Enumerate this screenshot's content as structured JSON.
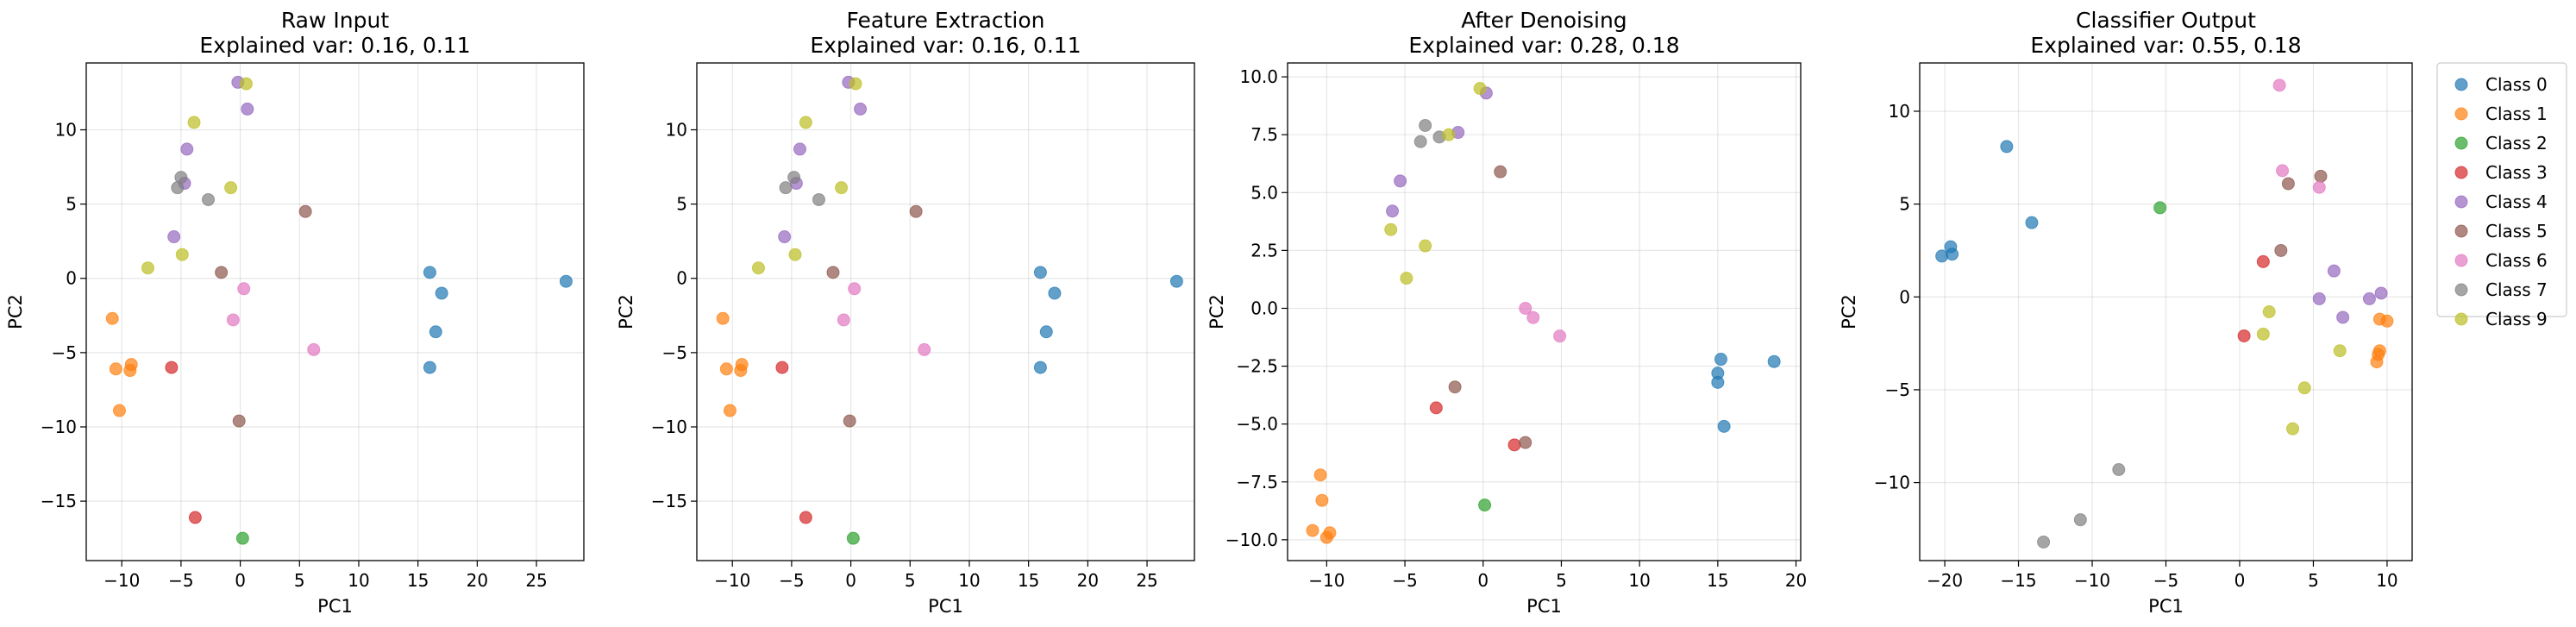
{
  "colors": {
    "Class 0": "#1f77b4",
    "Class 1": "#ff7f0e",
    "Class 2": "#2ca02c",
    "Class 3": "#d62728",
    "Class 4": "#9467bd",
    "Class 5": "#8c564b",
    "Class 6": "#e377c2",
    "Class 7": "#7f7f7f",
    "Class 9": "#bcbd22"
  },
  "legend": [
    "Class 0",
    "Class 1",
    "Class 2",
    "Class 3",
    "Class 4",
    "Class 5",
    "Class 6",
    "Class 7",
    "Class 9"
  ],
  "chart_data": [
    {
      "type": "scatter",
      "title": "Raw Input",
      "subtitle": "Explained var: 0.16, 0.11",
      "xlabel": "PC1",
      "ylabel": "PC2",
      "xlim": [
        -13,
        29
      ],
      "ylim": [
        -19,
        14.5
      ],
      "xticks": [
        -10,
        -5,
        0,
        5,
        10,
        15,
        20,
        25
      ],
      "yticks": [
        -15,
        -10,
        -5,
        0,
        5,
        10
      ],
      "grid": true,
      "points": [
        {
          "x": 16,
          "y": 0.4,
          "cls": "Class 0"
        },
        {
          "x": 17,
          "y": -1,
          "cls": "Class 0"
        },
        {
          "x": 16.5,
          "y": -3.6,
          "cls": "Class 0"
        },
        {
          "x": 16,
          "y": -6,
          "cls": "Class 0"
        },
        {
          "x": 27.5,
          "y": -0.2,
          "cls": "Class 0"
        },
        {
          "x": -10.8,
          "y": -2.7,
          "cls": "Class 1"
        },
        {
          "x": -10.5,
          "y": -6.1,
          "cls": "Class 1"
        },
        {
          "x": -9.3,
          "y": -6.2,
          "cls": "Class 1"
        },
        {
          "x": -9.2,
          "y": -5.8,
          "cls": "Class 1"
        },
        {
          "x": -10.2,
          "y": -8.9,
          "cls": "Class 1"
        },
        {
          "x": 0.2,
          "y": -17.5,
          "cls": "Class 2"
        },
        {
          "x": -5.8,
          "y": -6,
          "cls": "Class 3"
        },
        {
          "x": -3.8,
          "y": -16.1,
          "cls": "Class 3"
        },
        {
          "x": -0.2,
          "y": 13.2,
          "cls": "Class 4"
        },
        {
          "x": 0.6,
          "y": 11.4,
          "cls": "Class 4"
        },
        {
          "x": -4.5,
          "y": 8.7,
          "cls": "Class 4"
        },
        {
          "x": -4.7,
          "y": 6.4,
          "cls": "Class 4"
        },
        {
          "x": -5.6,
          "y": 2.8,
          "cls": "Class 4"
        },
        {
          "x": 5.5,
          "y": 4.5,
          "cls": "Class 5"
        },
        {
          "x": -1.6,
          "y": 0.4,
          "cls": "Class 5"
        },
        {
          "x": -0.1,
          "y": -9.6,
          "cls": "Class 5"
        },
        {
          "x": 0.3,
          "y": -0.7,
          "cls": "Class 6"
        },
        {
          "x": -0.6,
          "y": -2.8,
          "cls": "Class 6"
        },
        {
          "x": 6.2,
          "y": -4.8,
          "cls": "Class 6"
        },
        {
          "x": -5.3,
          "y": 6.1,
          "cls": "Class 7"
        },
        {
          "x": -5,
          "y": 6.8,
          "cls": "Class 7"
        },
        {
          "x": -2.7,
          "y": 5.3,
          "cls": "Class 7"
        },
        {
          "x": 0.5,
          "y": 13.1,
          "cls": "Class 9"
        },
        {
          "x": -3.9,
          "y": 10.5,
          "cls": "Class 9"
        },
        {
          "x": -0.8,
          "y": 6.1,
          "cls": "Class 9"
        },
        {
          "x": -7.8,
          "y": 0.7,
          "cls": "Class 9"
        },
        {
          "x": -4.9,
          "y": 1.6,
          "cls": "Class 9"
        }
      ]
    },
    {
      "type": "scatter",
      "title": "Feature Extraction",
      "subtitle": "Explained var: 0.16, 0.11",
      "xlabel": "PC1",
      "ylabel": "PC2",
      "xlim": [
        -13,
        29
      ],
      "ylim": [
        -19,
        14.5
      ],
      "xticks": [
        -10,
        -5,
        0,
        5,
        10,
        15,
        20,
        25
      ],
      "yticks": [
        -15,
        -10,
        -5,
        0,
        5,
        10
      ],
      "grid": true,
      "points": [
        {
          "x": 16,
          "y": 0.4,
          "cls": "Class 0"
        },
        {
          "x": 17.2,
          "y": -1,
          "cls": "Class 0"
        },
        {
          "x": 16.5,
          "y": -3.6,
          "cls": "Class 0"
        },
        {
          "x": 16,
          "y": -6,
          "cls": "Class 0"
        },
        {
          "x": 27.5,
          "y": -0.2,
          "cls": "Class 0"
        },
        {
          "x": -10.8,
          "y": -2.7,
          "cls": "Class 1"
        },
        {
          "x": -10.5,
          "y": -6.1,
          "cls": "Class 1"
        },
        {
          "x": -9.3,
          "y": -6.2,
          "cls": "Class 1"
        },
        {
          "x": -9.2,
          "y": -5.8,
          "cls": "Class 1"
        },
        {
          "x": -10.2,
          "y": -8.9,
          "cls": "Class 1"
        },
        {
          "x": 0.2,
          "y": -17.5,
          "cls": "Class 2"
        },
        {
          "x": -5.8,
          "y": -6,
          "cls": "Class 3"
        },
        {
          "x": -3.8,
          "y": -16.1,
          "cls": "Class 3"
        },
        {
          "x": -0.2,
          "y": 13.2,
          "cls": "Class 4"
        },
        {
          "x": 0.8,
          "y": 11.4,
          "cls": "Class 4"
        },
        {
          "x": -4.3,
          "y": 8.7,
          "cls": "Class 4"
        },
        {
          "x": -4.6,
          "y": 6.4,
          "cls": "Class 4"
        },
        {
          "x": -5.6,
          "y": 2.8,
          "cls": "Class 4"
        },
        {
          "x": 5.5,
          "y": 4.5,
          "cls": "Class 5"
        },
        {
          "x": -1.5,
          "y": 0.4,
          "cls": "Class 5"
        },
        {
          "x": -0.1,
          "y": -9.6,
          "cls": "Class 5"
        },
        {
          "x": 0.3,
          "y": -0.7,
          "cls": "Class 6"
        },
        {
          "x": -0.6,
          "y": -2.8,
          "cls": "Class 6"
        },
        {
          "x": 6.2,
          "y": -4.8,
          "cls": "Class 6"
        },
        {
          "x": -5.5,
          "y": 6.1,
          "cls": "Class 7"
        },
        {
          "x": -4.8,
          "y": 6.8,
          "cls": "Class 7"
        },
        {
          "x": -2.7,
          "y": 5.3,
          "cls": "Class 7"
        },
        {
          "x": 0.4,
          "y": 13.1,
          "cls": "Class 9"
        },
        {
          "x": -3.8,
          "y": 10.5,
          "cls": "Class 9"
        },
        {
          "x": -0.8,
          "y": 6.1,
          "cls": "Class 9"
        },
        {
          "x": -7.8,
          "y": 0.7,
          "cls": "Class 9"
        },
        {
          "x": -4.7,
          "y": 1.6,
          "cls": "Class 9"
        }
      ]
    },
    {
      "type": "scatter",
      "title": "After Denoising",
      "subtitle": "Explained var: 0.28, 0.18",
      "xlabel": "PC1",
      "ylabel": "PC2",
      "xlim": [
        -12.5,
        20.3
      ],
      "ylim": [
        -10.9,
        10.6
      ],
      "xticks": [
        -10,
        -5,
        0,
        5,
        10,
        15,
        20
      ],
      "yticks": [
        -10.0,
        -7.5,
        -5.0,
        -2.5,
        0.0,
        2.5,
        5.0,
        7.5,
        10.0
      ],
      "ytick_labels": [
        "−10.0",
        "−7.5",
        "−5.0",
        "−2.5",
        "0.0",
        "2.5",
        "5.0",
        "7.5",
        "10.0"
      ],
      "grid": true,
      "points": [
        {
          "x": 15.2,
          "y": -2.2,
          "cls": "Class 0"
        },
        {
          "x": 15,
          "y": -2.8,
          "cls": "Class 0"
        },
        {
          "x": 15,
          "y": -3.2,
          "cls": "Class 0"
        },
        {
          "x": 15.4,
          "y": -5.1,
          "cls": "Class 0"
        },
        {
          "x": 18.6,
          "y": -2.3,
          "cls": "Class 0"
        },
        {
          "x": -10.4,
          "y": -7.2,
          "cls": "Class 1"
        },
        {
          "x": -10.3,
          "y": -8.3,
          "cls": "Class 1"
        },
        {
          "x": -10.9,
          "y": -9.6,
          "cls": "Class 1"
        },
        {
          "x": -9.8,
          "y": -9.7,
          "cls": "Class 1"
        },
        {
          "x": -10,
          "y": -9.9,
          "cls": "Class 1"
        },
        {
          "x": 0.1,
          "y": -8.5,
          "cls": "Class 2"
        },
        {
          "x": -3,
          "y": -4.3,
          "cls": "Class 3"
        },
        {
          "x": 2,
          "y": -5.9,
          "cls": "Class 3"
        },
        {
          "x": 0.2,
          "y": 9.3,
          "cls": "Class 4"
        },
        {
          "x": -1.6,
          "y": 7.6,
          "cls": "Class 4"
        },
        {
          "x": -5.3,
          "y": 5.5,
          "cls": "Class 4"
        },
        {
          "x": -5.8,
          "y": 4.2,
          "cls": "Class 4"
        },
        {
          "x": 1.1,
          "y": 5.9,
          "cls": "Class 5"
        },
        {
          "x": -1.8,
          "y": -3.4,
          "cls": "Class 5"
        },
        {
          "x": 2.7,
          "y": -5.8,
          "cls": "Class 5"
        },
        {
          "x": 2.7,
          "y": 0,
          "cls": "Class 6"
        },
        {
          "x": 3.2,
          "y": -0.4,
          "cls": "Class 6"
        },
        {
          "x": 4.9,
          "y": -1.2,
          "cls": "Class 6"
        },
        {
          "x": -3.7,
          "y": 7.9,
          "cls": "Class 7"
        },
        {
          "x": -4,
          "y": 7.2,
          "cls": "Class 7"
        },
        {
          "x": -2.8,
          "y": 7.4,
          "cls": "Class 7"
        },
        {
          "x": -0.2,
          "y": 9.5,
          "cls": "Class 9"
        },
        {
          "x": -2.2,
          "y": 7.5,
          "cls": "Class 9"
        },
        {
          "x": -5.9,
          "y": 3.4,
          "cls": "Class 9"
        },
        {
          "x": -3.7,
          "y": 2.7,
          "cls": "Class 9"
        },
        {
          "x": -4.9,
          "y": 1.3,
          "cls": "Class 9"
        }
      ]
    },
    {
      "type": "scatter",
      "title": "Classifier Output",
      "subtitle": "Explained var: 0.55, 0.18",
      "xlabel": "PC1",
      "ylabel": "PC2",
      "xlim": [
        -21.7,
        11.7
      ],
      "ylim": [
        -14.2,
        12.6
      ],
      "xticks": [
        -20,
        -15,
        -10,
        -5,
        0,
        5,
        10
      ],
      "yticks": [
        -10,
        -5,
        0,
        5,
        10
      ],
      "grid": true,
      "points": [
        {
          "x": -20.2,
          "y": 2.2,
          "cls": "Class 0"
        },
        {
          "x": -19.6,
          "y": 2.7,
          "cls": "Class 0"
        },
        {
          "x": -19.5,
          "y": 2.3,
          "cls": "Class 0"
        },
        {
          "x": -15.8,
          "y": 8.1,
          "cls": "Class 0"
        },
        {
          "x": -14.1,
          "y": 4,
          "cls": "Class 0"
        },
        {
          "x": 9.5,
          "y": -1.2,
          "cls": "Class 1"
        },
        {
          "x": 10,
          "y": -1.3,
          "cls": "Class 1"
        },
        {
          "x": 9.5,
          "y": -2.9,
          "cls": "Class 1"
        },
        {
          "x": 9.4,
          "y": -3.1,
          "cls": "Class 1"
        },
        {
          "x": 9.3,
          "y": -3.5,
          "cls": "Class 1"
        },
        {
          "x": -5.4,
          "y": 4.8,
          "cls": "Class 2"
        },
        {
          "x": 1.6,
          "y": 1.9,
          "cls": "Class 3"
        },
        {
          "x": 0.3,
          "y": -2.1,
          "cls": "Class 3"
        },
        {
          "x": 6.4,
          "y": 1.4,
          "cls": "Class 4"
        },
        {
          "x": 5.4,
          "y": -0.1,
          "cls": "Class 4"
        },
        {
          "x": 9.6,
          "y": 0.2,
          "cls": "Class 4"
        },
        {
          "x": 8.8,
          "y": -0.1,
          "cls": "Class 4"
        },
        {
          "x": 7,
          "y": -1.1,
          "cls": "Class 4"
        },
        {
          "x": 5.5,
          "y": 6.5,
          "cls": "Class 5"
        },
        {
          "x": 3.3,
          "y": 6.1,
          "cls": "Class 5"
        },
        {
          "x": 2.8,
          "y": 2.5,
          "cls": "Class 5"
        },
        {
          "x": 2.7,
          "y": 11.4,
          "cls": "Class 6"
        },
        {
          "x": 2.9,
          "y": 6.8,
          "cls": "Class 6"
        },
        {
          "x": 5.4,
          "y": 5.9,
          "cls": "Class 6"
        },
        {
          "x": -13.3,
          "y": -13.2,
          "cls": "Class 7"
        },
        {
          "x": -10.8,
          "y": -12,
          "cls": "Class 7"
        },
        {
          "x": -8.2,
          "y": -9.3,
          "cls": "Class 7"
        },
        {
          "x": 2,
          "y": -0.8,
          "cls": "Class 9"
        },
        {
          "x": 1.6,
          "y": -2,
          "cls": "Class 9"
        },
        {
          "x": 6.8,
          "y": -2.9,
          "cls": "Class 9"
        },
        {
          "x": 4.4,
          "y": -4.9,
          "cls": "Class 9"
        },
        {
          "x": 3.6,
          "y": -7.1,
          "cls": "Class 9"
        }
      ]
    }
  ]
}
